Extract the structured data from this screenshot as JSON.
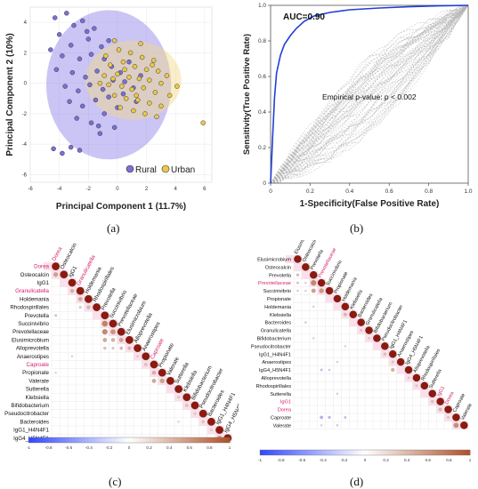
{
  "panel_labels": [
    "(a)",
    "(b)",
    "(c)",
    "(d)"
  ],
  "chart_data": [
    {
      "panel": "(a)",
      "type": "scatter",
      "xlabel": "Principal Component 1 (11.7%)",
      "ylabel": "Principal Component 2 (10%)",
      "xlim": [
        -6,
        6.5
      ],
      "ylim": [
        -6.5,
        5
      ],
      "x_ticks": [
        "-6",
        "-4",
        "-2",
        "0",
        "2",
        "4",
        "6"
      ],
      "y_ticks": [
        "4",
        "2",
        "0",
        "-2",
        "-4",
        "-6"
      ],
      "grid": true,
      "legend_placement": "bottom-right",
      "series": [
        {
          "name": "Rural",
          "color": "#7a6fd6",
          "ellipse": {
            "cx": -0.6,
            "cy": -0.1,
            "rx": 4.3,
            "ry": 4.9
          },
          "points": [
            [
              -4.3,
              4.3
            ],
            [
              -3.5,
              4.6
            ],
            [
              -2.4,
              4.1
            ],
            [
              -1.6,
              3.6
            ],
            [
              -4.0,
              3.2
            ],
            [
              -3.2,
              2.5
            ],
            [
              -2.0,
              2.9
            ],
            [
              -1.1,
              2.4
            ],
            [
              -3.8,
              1.8
            ],
            [
              -2.6,
              1.6
            ],
            [
              -1.8,
              1.9
            ],
            [
              -0.9,
              1.6
            ],
            [
              -4.2,
              0.9
            ],
            [
              -3.1,
              0.7
            ],
            [
              -2.2,
              0.4
            ],
            [
              -1.4,
              0.8
            ],
            [
              -0.4,
              1.1
            ],
            [
              0.2,
              0.7
            ],
            [
              -3.6,
              -0.2
            ],
            [
              -2.7,
              -0.5
            ],
            [
              -1.9,
              -0.1
            ],
            [
              -1.0,
              -0.4
            ],
            [
              -0.3,
              0.2
            ],
            [
              0.5,
              0.1
            ],
            [
              -3.3,
              -1.2
            ],
            [
              -2.4,
              -1.5
            ],
            [
              -1.5,
              -1.1
            ],
            [
              -0.6,
              -0.9
            ],
            [
              0.4,
              -0.7
            ],
            [
              1.1,
              -0.3
            ],
            [
              -2.8,
              -2.3
            ],
            [
              -1.8,
              -2.6
            ],
            [
              -0.9,
              -2.0
            ],
            [
              0.0,
              -1.6
            ],
            [
              -4.4,
              -4.3
            ],
            [
              -3.8,
              -4.6
            ],
            [
              -3.2,
              -4.2
            ],
            [
              -2.6,
              -4.4
            ],
            [
              -1.2,
              -3.3
            ],
            [
              -0.2,
              -2.9
            ],
            [
              0.8,
              1.4
            ],
            [
              1.6,
              0.5
            ],
            [
              -2.1,
              3.4
            ],
            [
              -0.6,
              2.8
            ],
            [
              -3.0,
              3.8
            ],
            [
              -4.6,
              2.2
            ],
            [
              -1.3,
              -2.8
            ],
            [
              1.3,
              -1.2
            ]
          ]
        },
        {
          "name": "Urban",
          "color": "#e9c84a",
          "ellipse": {
            "cx": 1.1,
            "cy": 0.2,
            "rx": 3.3,
            "ry": 2.6
          },
          "points": [
            [
              -0.8,
              1.8
            ],
            [
              0.1,
              2.2
            ],
            [
              0.9,
              2.0
            ],
            [
              1.7,
              1.7
            ],
            [
              2.5,
              1.5
            ],
            [
              -0.5,
              1.2
            ],
            [
              0.4,
              1.4
            ],
            [
              1.2,
              1.1
            ],
            [
              2.0,
              0.9
            ],
            [
              2.8,
              0.8
            ],
            [
              3.4,
              0.5
            ],
            [
              -0.9,
              0.5
            ],
            [
              0.0,
              0.6
            ],
            [
              0.8,
              0.4
            ],
            [
              1.5,
              0.3
            ],
            [
              2.2,
              0.2
            ],
            [
              3.0,
              0.0
            ],
            [
              -0.6,
              -0.1
            ],
            [
              0.3,
              -0.2
            ],
            [
              1.0,
              -0.4
            ],
            [
              1.8,
              -0.3
            ],
            [
              2.6,
              -0.6
            ],
            [
              3.6,
              -0.8
            ],
            [
              -0.2,
              -0.8
            ],
            [
              0.6,
              -1.0
            ],
            [
              1.4,
              -1.1
            ],
            [
              2.2,
              -1.3
            ],
            [
              3.0,
              -1.5
            ],
            [
              0.2,
              -1.6
            ],
            [
              1.1,
              -1.8
            ],
            [
              1.9,
              -2.0
            ],
            [
              2.7,
              -2.2
            ],
            [
              -1.2,
              0.0
            ],
            [
              -0.2,
              2.8
            ],
            [
              1.6,
              2.6
            ],
            [
              4.1,
              -0.2
            ],
            [
              0.5,
              0.9
            ],
            [
              1.3,
              -0.8
            ],
            [
              2.4,
              1.2
            ],
            [
              -0.3,
              0.3
            ],
            [
              5.9,
              -2.6
            ]
          ]
        }
      ]
    },
    {
      "panel": "(b)",
      "type": "line",
      "xlabel": "1-Specificity(False Positive Rate)",
      "ylabel": "Sensitivity(True Positive Rate)",
      "xlim": [
        0,
        1
      ],
      "ylim": [
        0,
        1
      ],
      "x_ticks": [
        "0",
        "0.2",
        "0.4",
        "0.6",
        "0.8",
        "1.0"
      ],
      "y_ticks": [
        "0",
        "0.2",
        "0.4",
        "0.6",
        "0.8",
        "1.0"
      ],
      "annotations": [
        "AUC=0.90",
        "Empirical p-value:  p < 0.002"
      ],
      "series": [
        {
          "color": "#1f3fd6",
          "x": [
            0,
            0.01,
            0.02,
            0.03,
            0.05,
            0.07,
            0.1,
            0.13,
            0.17,
            0.22,
            0.3,
            0.4,
            0.55,
            0.7,
            0.85,
            1.0
          ],
          "y": [
            0,
            0.25,
            0.48,
            0.62,
            0.72,
            0.78,
            0.83,
            0.87,
            0.91,
            0.94,
            0.96,
            0.975,
            0.985,
            0.992,
            0.997,
            1.0
          ]
        }
      ],
      "permutation_band": {
        "color": "#b3b3b3",
        "style": "dashed",
        "count": 60
      }
    },
    {
      "panel": "(c)",
      "type": "heatmap",
      "labels": [
        "Dorea",
        "Osteocalcin",
        "IgG1",
        "Granulicatella",
        "Holdemania",
        "Rhodospirillales",
        "Prevotella",
        "Succinivibrio",
        "Prevotellaceae",
        "Elusimicrobium",
        "Alloprevotella",
        "Anaerostipes",
        "Caproate",
        "Propionate",
        "Valerate",
        "Sutterella",
        "Klebsiella",
        "Bifidobacterium",
        "Pseudocitrobacter",
        "Bacteroides",
        "IgG1_H4N4F1",
        "IgG4_H5N4F1"
      ],
      "highlight_labels": [
        "Dorea",
        "Granulicatella",
        "Caproate"
      ],
      "colorbar_ticks": [
        "-1",
        "-0.8",
        "-0.6",
        "-0.4",
        "-0.2",
        "0",
        "0.2",
        "0.4",
        "0.6",
        "0.8",
        "1"
      ],
      "cells": [
        [
          1,
          0,
          0.55
        ],
        [
          3,
          2,
          0.45
        ],
        [
          4,
          3,
          0.5
        ],
        [
          5,
          4,
          0.42
        ],
        [
          5,
          3,
          0.3
        ],
        [
          7,
          6,
          0.72
        ],
        [
          8,
          6,
          0.68
        ],
        [
          8,
          7,
          0.62
        ],
        [
          9,
          6,
          0.5
        ],
        [
          9,
          7,
          0.45
        ],
        [
          9,
          8,
          0.52
        ],
        [
          10,
          6,
          0.35
        ],
        [
          10,
          7,
          0.3
        ],
        [
          10,
          8,
          0.38
        ],
        [
          10,
          9,
          0.4
        ],
        [
          6,
          0,
          0.3
        ],
        [
          11,
          10,
          0.25
        ],
        [
          12,
          11,
          0.35
        ],
        [
          13,
          12,
          0.45
        ],
        [
          14,
          12,
          0.5
        ],
        [
          14,
          13,
          0.55
        ],
        [
          16,
          15,
          0.3
        ],
        [
          17,
          16,
          0.35
        ],
        [
          18,
          17,
          0.28
        ],
        [
          19,
          18,
          0.32
        ],
        [
          20,
          19,
          0.25
        ],
        [
          21,
          20,
          0.6
        ],
        [
          19,
          15,
          0.2
        ],
        [
          13,
          0,
          -0.15
        ],
        [
          11,
          2,
          0.18
        ]
      ]
    },
    {
      "panel": "(d)",
      "type": "heatmap",
      "labels": [
        "Elusimicrobium",
        "Osteocalcin",
        "Prevotella",
        "Prevotellaceae",
        "Succinivibrio",
        "Propionate",
        "Holdemania",
        "Klebsiella",
        "Bacteroides",
        "Granulicatella",
        "Bifidobacterium",
        "Pseudocitrobacter",
        "IgG1_H4N4F1",
        "Anaerostipes",
        "IgG4_H5N4F1",
        "Alloprevotella",
        "Rhodospirillales",
        "Sutterella",
        "IgG1",
        "Dorea",
        "Caproate",
        "Valerate"
      ],
      "highlight_labels": [
        "Prevotellaceae",
        "IgG1",
        "Dorea"
      ],
      "colorbar_ticks": [
        "-1",
        "-0.8",
        "-0.6",
        "-0.4",
        "-0.2",
        "0",
        "0.2",
        "0.4",
        "0.6",
        "0.8",
        "1"
      ],
      "cells": [
        [
          3,
          2,
          0.7
        ],
        [
          4,
          2,
          0.55
        ],
        [
          4,
          3,
          0.6
        ],
        [
          2,
          0,
          0.35
        ],
        [
          3,
          0,
          0.3
        ],
        [
          4,
          0,
          0.25
        ],
        [
          3,
          1,
          0.2
        ],
        [
          4,
          1,
          0.22
        ],
        [
          7,
          6,
          0.4
        ],
        [
          9,
          8,
          0.3
        ],
        [
          10,
          9,
          0.25
        ],
        [
          12,
          11,
          0.35
        ],
        [
          13,
          12,
          0.3
        ],
        [
          14,
          12,
          0.45
        ],
        [
          15,
          14,
          0.25
        ],
        [
          16,
          15,
          0.3
        ],
        [
          18,
          17,
          0.35
        ],
        [
          19,
          18,
          0.4
        ],
        [
          21,
          20,
          0.65
        ],
        [
          20,
          19,
          0.3
        ],
        [
          8,
          1,
          -0.25
        ],
        [
          10,
          2,
          -0.2
        ],
        [
          14,
          3,
          -0.3
        ],
        [
          14,
          4,
          -0.25
        ],
        [
          17,
          5,
          -0.2
        ],
        [
          20,
          3,
          -0.4
        ],
        [
          20,
          4,
          -0.35
        ],
        [
          21,
          3,
          -0.2
        ],
        [
          20,
          6,
          -0.3
        ],
        [
          21,
          5,
          -0.25
        ],
        [
          13,
          5,
          0.2
        ],
        [
          11,
          6,
          0.18
        ],
        [
          6,
          2,
          0.2
        ]
      ]
    }
  ]
}
